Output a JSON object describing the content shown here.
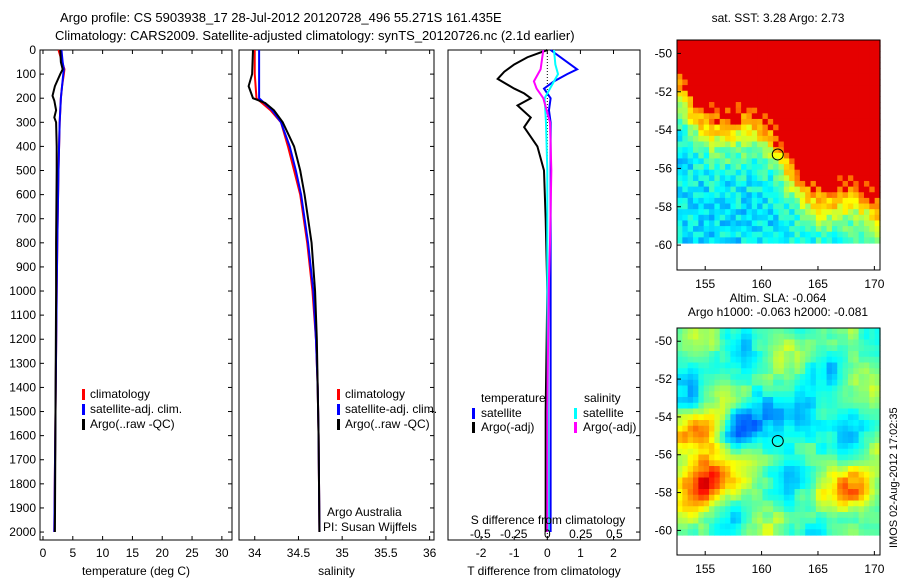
{
  "title": {
    "line1": "Argo profile: CS 5903938_17 28-Jul-2012 20120728_496 55.271S 161.435E",
    "line2": "Climatology: CARS2009. Satellite-adjusted climatology: synTS_20120726.nc (2.1d earlier)"
  },
  "colors": {
    "climatology": "#ff0000",
    "satellite": "#0000ff",
    "argo": "#000000",
    "sal_satellite": "#00ffff",
    "sal_argo": "#ff00ff"
  },
  "stamp": "IMOS 02-Aug-2012 17:02:35",
  "chart_data": [
    {
      "type": "line",
      "name": "temperature",
      "xlabel": "temperature (deg C)",
      "ylabel": "",
      "xlim": [
        -0.5,
        31.7
      ],
      "ylim": [
        2033,
        0
      ],
      "xticks": [
        0,
        5,
        10,
        15,
        20,
        25,
        30
      ],
      "yticks": [
        0,
        100,
        200,
        300,
        400,
        500,
        600,
        700,
        800,
        900,
        1000,
        1100,
        1200,
        1300,
        1400,
        1500,
        1600,
        1700,
        1800,
        1900,
        2000
      ],
      "legend": [
        "climatology",
        "satellite-adj. clim.",
        "Argo(..raw -QC)"
      ],
      "series": [
        {
          "name": "climatology",
          "color": "#ff0000",
          "depth": [
            0,
            50,
            80,
            100,
            150,
            200,
            300,
            500,
            800,
            1000,
            1500,
            2000
          ],
          "values": [
            2.6,
            3.2,
            3.6,
            3.5,
            3.2,
            3.0,
            2.8,
            2.6,
            2.4,
            2.3,
            2.1,
            1.9
          ]
        },
        {
          "name": "satellite-adj. clim.",
          "color": "#0000ff",
          "depth": [
            0,
            50,
            80,
            100,
            150,
            200,
            300,
            500,
            800,
            1000,
            1500,
            2000
          ],
          "values": [
            3.1,
            3.3,
            3.5,
            3.4,
            3.2,
            3.0,
            2.8,
            2.6,
            2.4,
            2.3,
            2.1,
            1.9
          ]
        },
        {
          "name": "Argo(..raw -QC)",
          "color": "#000000",
          "depth": [
            0,
            50,
            80,
            100,
            150,
            190,
            210,
            250,
            280,
            300,
            400,
            500,
            800,
            1000,
            1500,
            2000
          ],
          "values": [
            2.9,
            3.0,
            3.3,
            2.9,
            2.0,
            1.6,
            1.9,
            2.2,
            1.9,
            2.2,
            2.3,
            2.3,
            2.2,
            2.2,
            2.1,
            2.0
          ]
        }
      ]
    },
    {
      "type": "line",
      "name": "salinity",
      "xlabel": "salinity",
      "ylabel": "",
      "xlim": [
        33.82,
        36.05
      ],
      "ylim": [
        2033,
        0
      ],
      "xticks": [
        34,
        34.5,
        35,
        35.5,
        36
      ],
      "legend": [
        "climatology",
        "satellite-adj. clim.",
        "Argo(..raw -QC)"
      ],
      "annotation": [
        "Argo Australia",
        "PI: Susan Wijffels"
      ],
      "series": [
        {
          "name": "climatology",
          "color": "#ff0000",
          "depth": [
            0,
            100,
            200,
            250,
            300,
            400,
            500,
            600,
            800,
            1000,
            1200,
            1400,
            1600,
            2000
          ],
          "values": [
            34.0,
            34.0,
            34.02,
            34.18,
            34.3,
            34.38,
            34.45,
            34.52,
            34.6,
            34.66,
            34.7,
            34.72,
            34.73,
            34.74
          ]
        },
        {
          "name": "satellite-adj. clim.",
          "color": "#0000ff",
          "depth": [
            0,
            100,
            200,
            250,
            300,
            400,
            500,
            600,
            800,
            1000,
            1200,
            1400,
            1600,
            2000
          ],
          "values": [
            34.05,
            34.05,
            34.05,
            34.2,
            34.3,
            34.4,
            34.47,
            34.53,
            34.61,
            34.67,
            34.7,
            34.72,
            34.73,
            34.74
          ]
        },
        {
          "name": "Argo(..raw -QC)",
          "color": "#000000",
          "depth": [
            0,
            100,
            150,
            200,
            220,
            250,
            300,
            400,
            500,
            600,
            800,
            1000,
            1200,
            1400,
            1600,
            2000
          ],
          "values": [
            33.98,
            33.97,
            33.93,
            33.98,
            34.12,
            34.22,
            34.32,
            34.45,
            34.52,
            34.57,
            34.65,
            34.69,
            34.71,
            34.72,
            34.73,
            34.74
          ]
        }
      ]
    },
    {
      "type": "line",
      "name": "difference",
      "xlabel": "T difference from climatology",
      "x2label": "S difference from climatology",
      "xlim": [
        -3,
        2.8
      ],
      "x2lim": [
        -0.5,
        0.5
      ],
      "xticks": [
        -2,
        -1,
        0,
        1,
        2
      ],
      "x2ticks": [
        -0.5,
        -0.25,
        0,
        0.25,
        0.5
      ],
      "x2ticklabels": [
        "-0.5",
        "-0.25",
        "0",
        "0.25",
        "0.5"
      ],
      "ylim": [
        2033,
        0
      ],
      "legend_titles": [
        "temperature",
        "salinity"
      ],
      "legend": [
        "satellite",
        "Argo(-adj)",
        "satellite",
        "Argo(-adj)"
      ],
      "series": [
        {
          "name": "T satellite",
          "axis": "T",
          "color": "#0000ff",
          "depth": [
            0,
            40,
            80,
            100,
            130,
            160,
            200,
            250,
            300,
            500,
            1000,
            2000
          ],
          "values": [
            0.1,
            0.5,
            0.9,
            0.6,
            0.2,
            -0.1,
            0.1,
            0.05,
            0.1,
            0.1,
            0.1,
            0.1
          ]
        },
        {
          "name": "T Argo(-adj)",
          "axis": "T",
          "color": "#000000",
          "depth": [
            0,
            30,
            60,
            90,
            120,
            160,
            180,
            200,
            230,
            280,
            320,
            400,
            500,
            700,
            1000,
            1500,
            2000
          ],
          "values": [
            0,
            -0.6,
            -1.0,
            -1.3,
            -1.5,
            -1.0,
            -0.7,
            -0.5,
            -0.9,
            -0.5,
            -0.7,
            -0.3,
            -0.1,
            -0.05,
            0,
            -0.05,
            -0.05
          ]
        },
        {
          "name": "S satellite",
          "axis": "S",
          "color": "#00ffff",
          "depth": [
            0,
            60,
            100,
            150,
            200,
            300,
            500,
            1000,
            2000
          ],
          "values": [
            0.05,
            0.06,
            0.08,
            0.03,
            -0.02,
            -0.01,
            0.0,
            0.0,
            0.01
          ]
        },
        {
          "name": "S Argo(-adj)",
          "axis": "S",
          "color": "#ff00ff",
          "depth": [
            0,
            80,
            130,
            160,
            200,
            300,
            500,
            800,
            1000,
            1500,
            2000
          ],
          "values": [
            -0.03,
            -0.05,
            -0.1,
            -0.08,
            -0.03,
            0.02,
            0.03,
            0.02,
            0.01,
            0.0,
            0.0
          ]
        }
      ]
    },
    {
      "type": "heatmap",
      "name": "sst-map",
      "title": "sat. SST: 3.28 Argo: 2.73",
      "xlim": [
        152.5,
        170.5
      ],
      "ylim": [
        -61.3,
        -49.3
      ],
      "xticks": [
        155,
        160,
        165,
        170
      ],
      "yticks": [
        -50,
        -52,
        -54,
        -56,
        -58,
        -60
      ],
      "marker": {
        "lon": 161.435,
        "lat": -55.271
      }
    },
    {
      "type": "heatmap",
      "name": "sla-map",
      "title": "Altim. SLA: -0.064",
      "subtitle": "Argo h1000: -0.063 h2000: -0.081",
      "xlim": [
        152.5,
        170.5
      ],
      "ylim": [
        -61.3,
        -49.3
      ],
      "xticks": [
        155,
        160,
        165,
        170
      ],
      "yticks": [
        -50,
        -52,
        -54,
        -56,
        -58,
        -60
      ],
      "marker": {
        "lon": 161.435,
        "lat": -55.271
      }
    }
  ]
}
